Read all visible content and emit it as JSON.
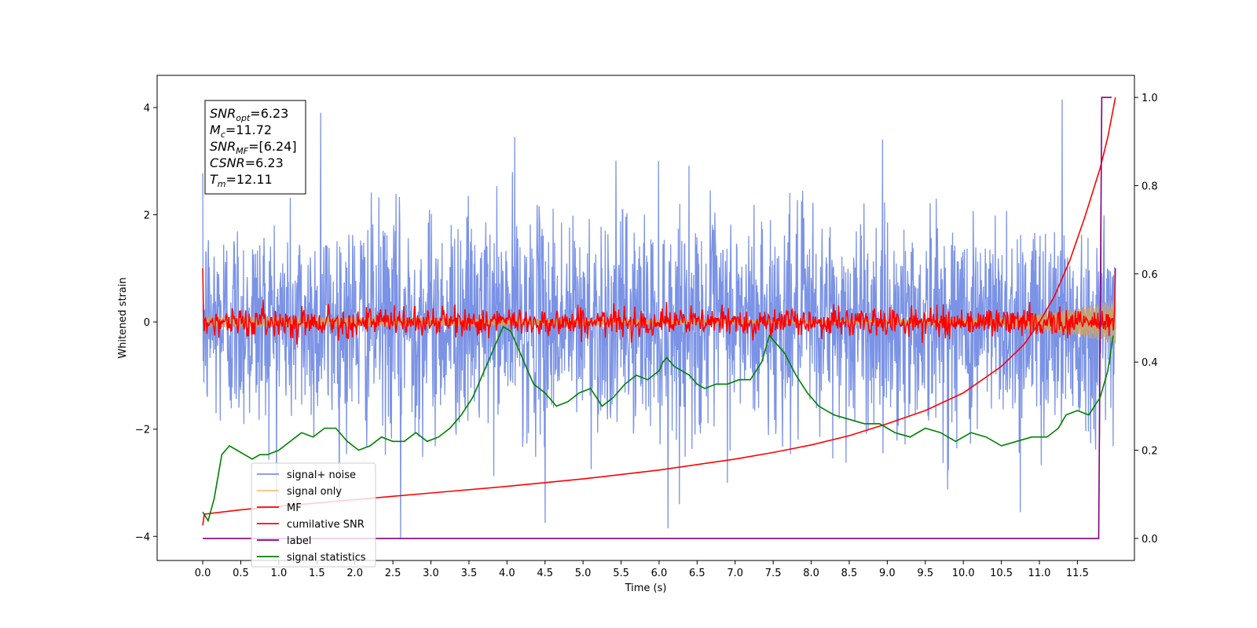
{
  "chart_data": {
    "type": "line",
    "title": "",
    "xlabel": "Time (s)",
    "ylabel": "Whitened strain",
    "xlim": [
      -0.6,
      12.25
    ],
    "ylim": [
      -4.45,
      4.6
    ],
    "y2lim": [
      -0.05,
      1.05
    ],
    "x_ticks": [
      "0.0",
      "0.5",
      "1.0",
      "1.5",
      "2.0",
      "2.5",
      "3.0",
      "3.5",
      "4.0",
      "4.5",
      "5.0",
      "5.5",
      "6.0",
      "6.5",
      "7.0",
      "7.5",
      "8.0",
      "8.5",
      "9.0",
      "9.5",
      "10.0",
      "10.5",
      "11.0",
      "11.5"
    ],
    "y_ticks": [
      "-4",
      "-2",
      "0",
      "2",
      "4"
    ],
    "y2_ticks": [
      "0.0",
      "0.2",
      "0.4",
      "0.6",
      "0.8",
      "1.0"
    ],
    "legend_placement": "lower-left",
    "stats_box": {
      "lines": [
        {
          "main": "SNR",
          "sub": "opt",
          "value": "=6.23"
        },
        {
          "main": "M",
          "sub": "c",
          "value": "=11.72"
        },
        {
          "main": "SNR",
          "sub": "MF",
          "value": "=[6.24]"
        },
        {
          "main": "CSNR",
          "sub": "",
          "value": "=6.23"
        },
        {
          "main": "T",
          "sub": "m",
          "value": "=12.11"
        }
      ]
    },
    "series": [
      {
        "name": "signal+ noise",
        "color": "#7b93e6",
        "axis": "left",
        "kind": "noise",
        "x_range": [
          0.0,
          12.0
        ],
        "amplitude_std": 1.0,
        "extremes": [
          {
            "x": 1.55,
            "y": 3.9
          },
          {
            "x": 4.1,
            "y": 3.45
          },
          {
            "x": 11.3,
            "y": 4.15
          },
          {
            "x": 2.6,
            "y": -4.05
          },
          {
            "x": 6.12,
            "y": -3.85
          },
          {
            "x": 4.5,
            "y": -3.75
          },
          {
            "x": 10.75,
            "y": -3.55
          }
        ]
      },
      {
        "name": "signal only",
        "color": "#f5c27a",
        "axis": "left",
        "kind": "chirp",
        "x_range": [
          0.0,
          12.0
        ],
        "envelope": [
          [
            0.0,
            0.1
          ],
          [
            8.0,
            0.03
          ],
          [
            10.5,
            0.08
          ],
          [
            11.5,
            0.25
          ],
          [
            12.0,
            0.42
          ]
        ]
      },
      {
        "name": "MF",
        "color": "#ff0000",
        "axis": "left",
        "kind": "mf",
        "x_range": [
          0.0,
          12.0
        ],
        "start_value": 1.0,
        "end_value": 1.0,
        "amplitude_std": 0.13
      },
      {
        "name": "cumilative SNR",
        "color": "#ff0000",
        "axis": "right",
        "x": [
          0.0,
          0.02,
          0.5,
          1.0,
          2.0,
          3.0,
          4.0,
          5.0,
          6.0,
          7.0,
          7.5,
          8.0,
          8.5,
          9.0,
          9.5,
          10.0,
          10.5,
          10.8,
          11.0,
          11.2,
          11.4,
          11.6,
          11.8,
          11.9,
          12.0
        ],
        "y": [
          0.03,
          0.055,
          0.065,
          0.073,
          0.088,
          0.103,
          0.118,
          0.135,
          0.155,
          0.18,
          0.195,
          0.212,
          0.233,
          0.26,
          0.29,
          0.33,
          0.39,
          0.44,
          0.49,
          0.55,
          0.63,
          0.73,
          0.84,
          0.91,
          1.0
        ]
      },
      {
        "name": "label",
        "color": "#800080",
        "axis": "right",
        "x": [
          0.0,
          11.75,
          11.78,
          11.82,
          11.95
        ],
        "y": [
          0.0,
          0.0,
          0.0,
          1.0,
          1.0
        ]
      },
      {
        "name": "signal statistics",
        "color": "#008000",
        "axis": "right",
        "x": [
          0.0,
          0.07,
          0.15,
          0.25,
          0.35,
          0.45,
          0.55,
          0.65,
          0.75,
          0.85,
          1.0,
          1.15,
          1.3,
          1.45,
          1.6,
          1.75,
          1.9,
          2.05,
          2.2,
          2.35,
          2.5,
          2.65,
          2.8,
          2.95,
          3.1,
          3.25,
          3.4,
          3.55,
          3.7,
          3.85,
          3.95,
          4.05,
          4.15,
          4.25,
          4.35,
          4.5,
          4.65,
          4.8,
          4.95,
          5.1,
          5.25,
          5.4,
          5.55,
          5.7,
          5.85,
          6.0,
          6.05,
          6.1,
          6.2,
          6.3,
          6.4,
          6.5,
          6.6,
          6.75,
          6.9,
          7.05,
          7.2,
          7.35,
          7.45,
          7.55,
          7.65,
          7.8,
          7.95,
          8.1,
          8.3,
          8.5,
          8.7,
          8.9,
          9.1,
          9.3,
          9.5,
          9.7,
          9.9,
          10.1,
          10.3,
          10.5,
          10.7,
          10.9,
          11.1,
          11.25,
          11.35,
          11.5,
          11.65,
          11.8,
          11.9,
          11.97
        ],
        "y": [
          0.06,
          0.04,
          0.09,
          0.19,
          0.21,
          0.2,
          0.19,
          0.18,
          0.19,
          0.19,
          0.2,
          0.22,
          0.24,
          0.23,
          0.25,
          0.25,
          0.22,
          0.2,
          0.21,
          0.23,
          0.22,
          0.22,
          0.24,
          0.22,
          0.23,
          0.25,
          0.28,
          0.32,
          0.38,
          0.44,
          0.48,
          0.47,
          0.43,
          0.39,
          0.35,
          0.33,
          0.3,
          0.31,
          0.33,
          0.34,
          0.3,
          0.32,
          0.35,
          0.37,
          0.36,
          0.38,
          0.4,
          0.41,
          0.39,
          0.38,
          0.37,
          0.35,
          0.34,
          0.35,
          0.35,
          0.36,
          0.36,
          0.4,
          0.46,
          0.44,
          0.42,
          0.37,
          0.33,
          0.3,
          0.28,
          0.27,
          0.26,
          0.26,
          0.24,
          0.23,
          0.25,
          0.24,
          0.22,
          0.24,
          0.23,
          0.21,
          0.22,
          0.23,
          0.23,
          0.25,
          0.28,
          0.29,
          0.28,
          0.32,
          0.38,
          0.46
        ]
      }
    ]
  }
}
